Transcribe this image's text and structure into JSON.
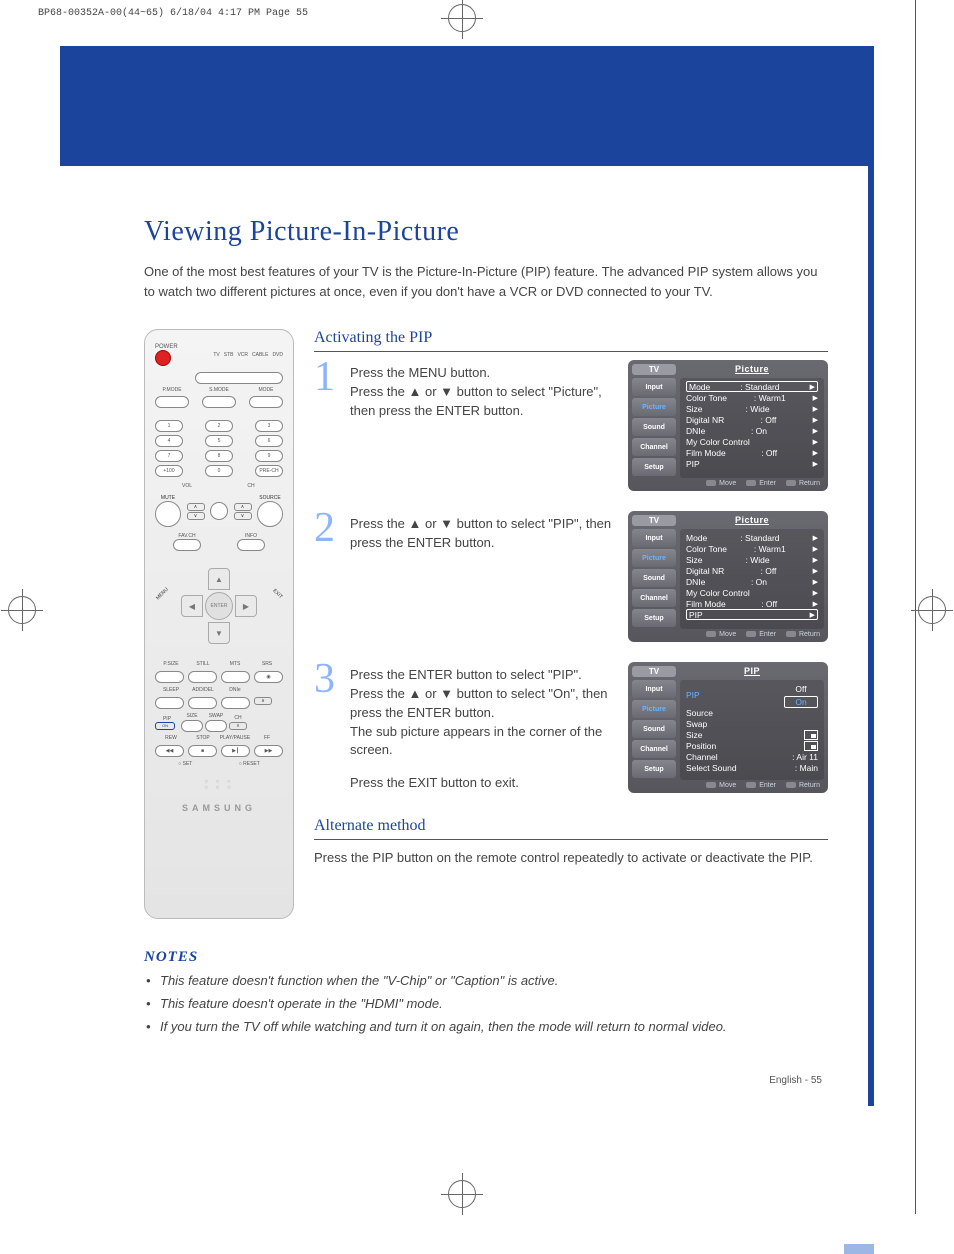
{
  "crop_header": "BP68-00352A-00(44~65)  6/18/04  4:17 PM  Page 55",
  "title": "Viewing Picture-In-Picture",
  "intro": "One of the most best features of your TV is the Picture-In-Picture (PIP) feature. The advanced PIP system allows you to watch two different pictures at once, even if you don't have a VCR or DVD connected to your TV.",
  "section_activating": "Activating the PIP",
  "section_alternate": "Alternate method",
  "alternate_text": "Press the PIP button on the remote control repeatedly to activate or deactivate the PIP.",
  "notes_title": "NOTES",
  "notes": [
    "This feature doesn't function when the \"V-Chip\" or \"Caption\" is active.",
    "This feature doesn't operate in the \"HDMI\" mode.",
    "If you turn the TV off while watching and turn it on again, then the mode will return to normal video."
  ],
  "page_label": "English - 55",
  "steps": {
    "s1": "Press the MENU button.\nPress the ▲ or ▼ button to select \"Picture\", then press the ENTER button.",
    "s2": "Press the ▲ or ▼ button to select \"PIP\", then press the ENTER button.",
    "s3": "Press the ENTER button to select \"PIP\".\nPress the ▲ or ▼ button to select \"On\", then press the ENTER button.\nThe sub picture appears in the corner of the screen.",
    "s3_exit": "Press the EXIT button to exit."
  },
  "osd": {
    "tv": "TV",
    "title_picture": "Picture",
    "title_pip": "PIP",
    "tabs": [
      "Input",
      "Picture",
      "Sound",
      "Channel",
      "Setup"
    ],
    "picture_items": [
      {
        "l": "Mode",
        "v": ": Standard"
      },
      {
        "l": "Color Tone",
        "v": ": Warm1"
      },
      {
        "l": "Size",
        "v": ": Wide"
      },
      {
        "l": "Digital NR",
        "v": ": Off"
      },
      {
        "l": "DNIe",
        "v": ": On"
      },
      {
        "l": "My Color Control",
        "v": ""
      },
      {
        "l": "Film Mode",
        "v": ": Off"
      },
      {
        "l": "PIP",
        "v": ""
      }
    ],
    "pip_items": [
      {
        "l": "PIP"
      },
      {
        "l": "Source",
        "v": ""
      },
      {
        "l": "Swap",
        "v": ""
      },
      {
        "l": "Size",
        "v": ""
      },
      {
        "l": "Position",
        "v": ""
      },
      {
        "l": "Channel",
        "v": ": Air 11"
      },
      {
        "l": "Select Sound",
        "v": ": Main"
      }
    ],
    "pip_off": "Off",
    "pip_on": "On",
    "footer_move": "Move",
    "footer_enter": "Enter",
    "footer_return": "Return"
  },
  "remote": {
    "power": "POWER",
    "device_row": [
      "TV",
      "STB",
      "VCR",
      "CABLE",
      "DVD"
    ],
    "mode_row": [
      "P.MODE",
      "S.MODE",
      "MODE"
    ],
    "numpad": [
      [
        "1",
        "2",
        "3"
      ],
      [
        "4",
        "5",
        "6"
      ],
      [
        "7",
        "8",
        "9"
      ],
      [
        "+100",
        "0",
        "PRE-CH"
      ]
    ],
    "vol": "VOL",
    "ch": "CH",
    "mute": "MUTE",
    "source": "SOURCE",
    "favch": "FAV.CH",
    "info": "INFO",
    "menu": "MENU",
    "exit": "EXIT",
    "srs_row": [
      "P.SIZE",
      "STILL",
      "MTS",
      "SRS"
    ],
    "sleep_row": [
      "SLEEP",
      "ADD/DEL",
      "DNIe",
      ""
    ],
    "pip": "PIP",
    "on": "ON",
    "size": "SIZE",
    "swap": "SWAP",
    "ch_lbl": "CH",
    "transport_row": [
      "REW",
      "STOP",
      "PLAY/PAUSE",
      "FF"
    ],
    "set": "SET",
    "reset": "RESET",
    "brand": "SAMSUNG",
    "colors": [
      "#d22",
      "#2a2",
      "#ec0",
      "#28d"
    ]
  },
  "theme": {
    "brand_blue": "#1b459c",
    "step_num_blue": "#8db5ff",
    "osd_bg_top": "#696970",
    "osd_active": "#6db4ff"
  }
}
